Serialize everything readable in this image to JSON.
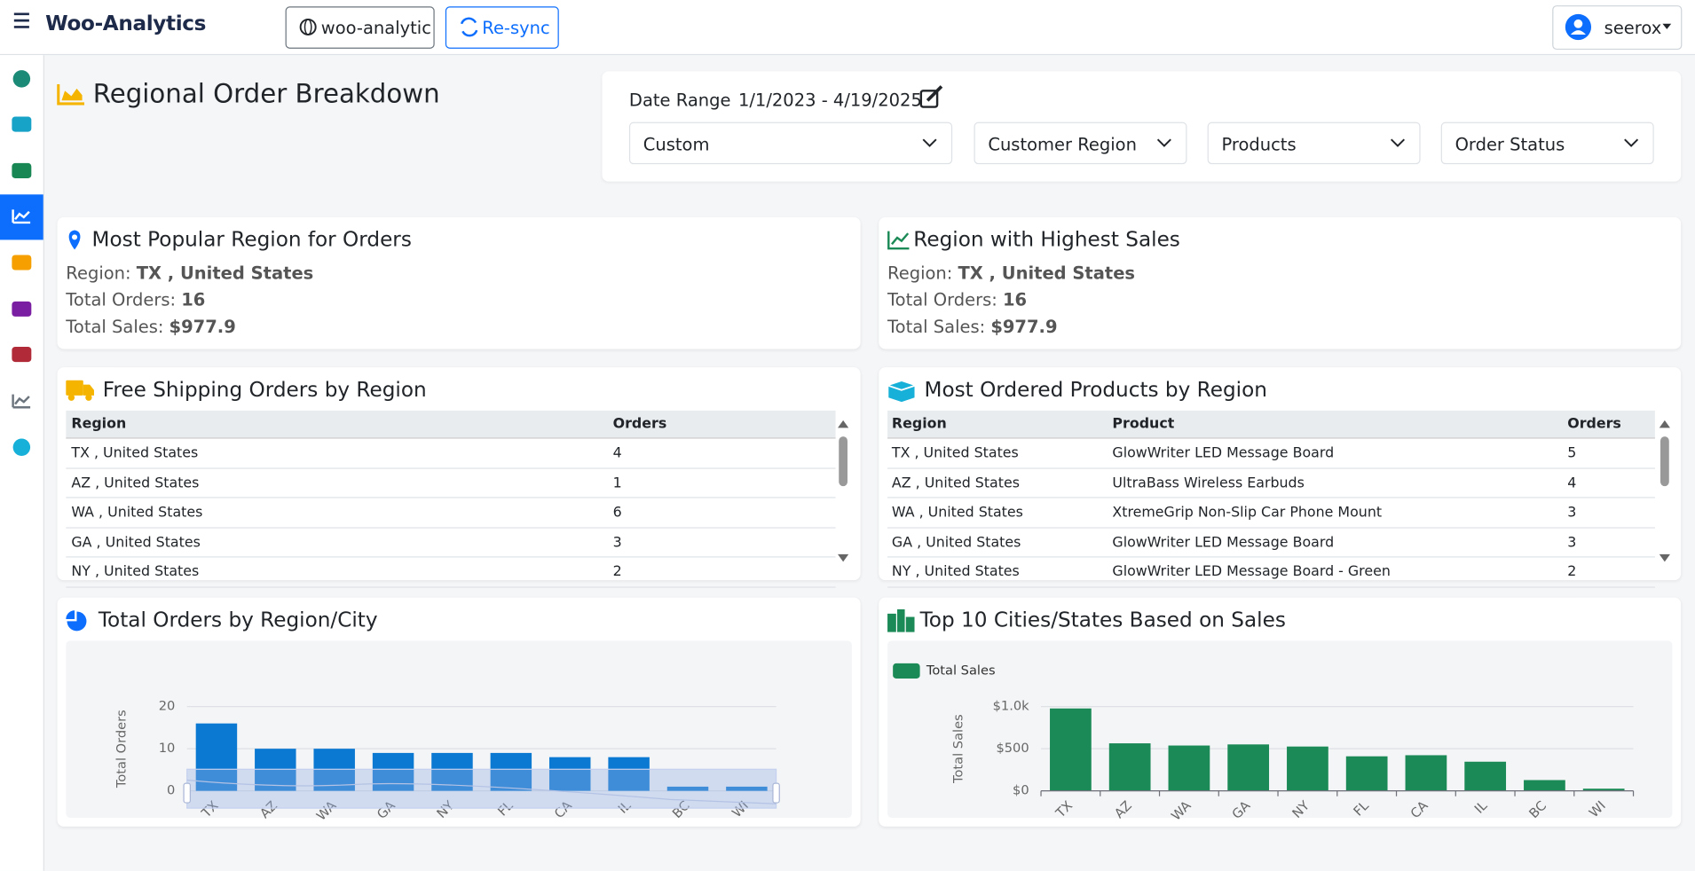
{
  "header": {
    "brand": "Woo-Analytics",
    "site_button": "woo-analytic",
    "resync_button": "Re-sync",
    "user": "seerox"
  },
  "page": {
    "title": "Regional Order Breakdown",
    "date_range_label": "Date Range",
    "date_range": "1/1/2023 - 4/19/2025",
    "filters": [
      "Custom",
      "Customer Region",
      "Products",
      "Order Status"
    ]
  },
  "summary_cards": [
    {
      "title": "Most Popular Region for Orders",
      "fields": [
        {
          "label": "Region:",
          "value": "TX , United States"
        },
        {
          "label": "Total Orders:",
          "value": "16"
        },
        {
          "label": "Total Sales:",
          "value": "$977.9"
        }
      ]
    },
    {
      "title": "Region with Highest Sales",
      "fields": [
        {
          "label": "Region:",
          "value": "TX , United States"
        },
        {
          "label": "Total Orders:",
          "value": "16"
        },
        {
          "label": "Total Sales:",
          "value": "$977.9"
        }
      ]
    }
  ],
  "tables": [
    {
      "title": "Free Shipping Orders by Region",
      "columns": [
        "Region",
        "Orders"
      ],
      "rows": [
        [
          "TX , United States",
          4
        ],
        [
          "AZ , United States",
          1
        ],
        [
          "WA , United States",
          6
        ],
        [
          "GA , United States",
          3
        ],
        [
          "NY , United States",
          2
        ]
      ]
    },
    {
      "title": "Most Ordered Products by Region",
      "columns": [
        "Region",
        "Product",
        "Orders"
      ],
      "rows": [
        [
          "TX , United States",
          "GlowWriter LED Message Board",
          5
        ],
        [
          "AZ , United States",
          "UltraBass Wireless Earbuds",
          4
        ],
        [
          "WA , United States",
          "XtremeGrip Non-Slip Car Phone Mount",
          3
        ],
        [
          "GA , United States",
          "GlowWriter LED Message Board",
          3
        ],
        [
          "NY , United States",
          "GlowWriter LED Message Board - Green",
          2
        ]
      ]
    }
  ],
  "chart_data": [
    {
      "type": "bar",
      "title": "Total Orders by Region/City",
      "y_label": "Total Orders",
      "categories": [
        "TX",
        "AZ",
        "WA",
        "GA",
        "NY",
        "FL",
        "CA",
        "IL",
        "BC",
        "WI"
      ],
      "values": [
        16,
        10,
        10,
        9,
        9,
        9,
        8,
        8,
        1,
        1
      ],
      "color": "#0b78d1",
      "ylim": [
        0,
        20
      ],
      "yticks": [
        0,
        10,
        20
      ],
      "grid": true
    },
    {
      "type": "bar",
      "title": "Top 10 Cities/States Based on Sales",
      "y_label": "Total Sales",
      "categories": [
        "TX",
        "AZ",
        "WA",
        "GA",
        "NY",
        "FL",
        "CA",
        "IL",
        "BC",
        "WI"
      ],
      "series": [
        {
          "name": "Total Sales",
          "color": "#1b8a56",
          "values": [
            977.9,
            564,
            538,
            551,
            526,
            410,
            423,
            346,
            128,
            26
          ]
        }
      ],
      "ylim": [
        0,
        1000
      ],
      "yticks": [
        {
          "value": 0,
          "label": "$0"
        },
        {
          "value": 500,
          "label": "$500"
        },
        {
          "value": 1000,
          "label": "$1.0k"
        }
      ],
      "grid": true,
      "legend": "top-left"
    }
  ]
}
